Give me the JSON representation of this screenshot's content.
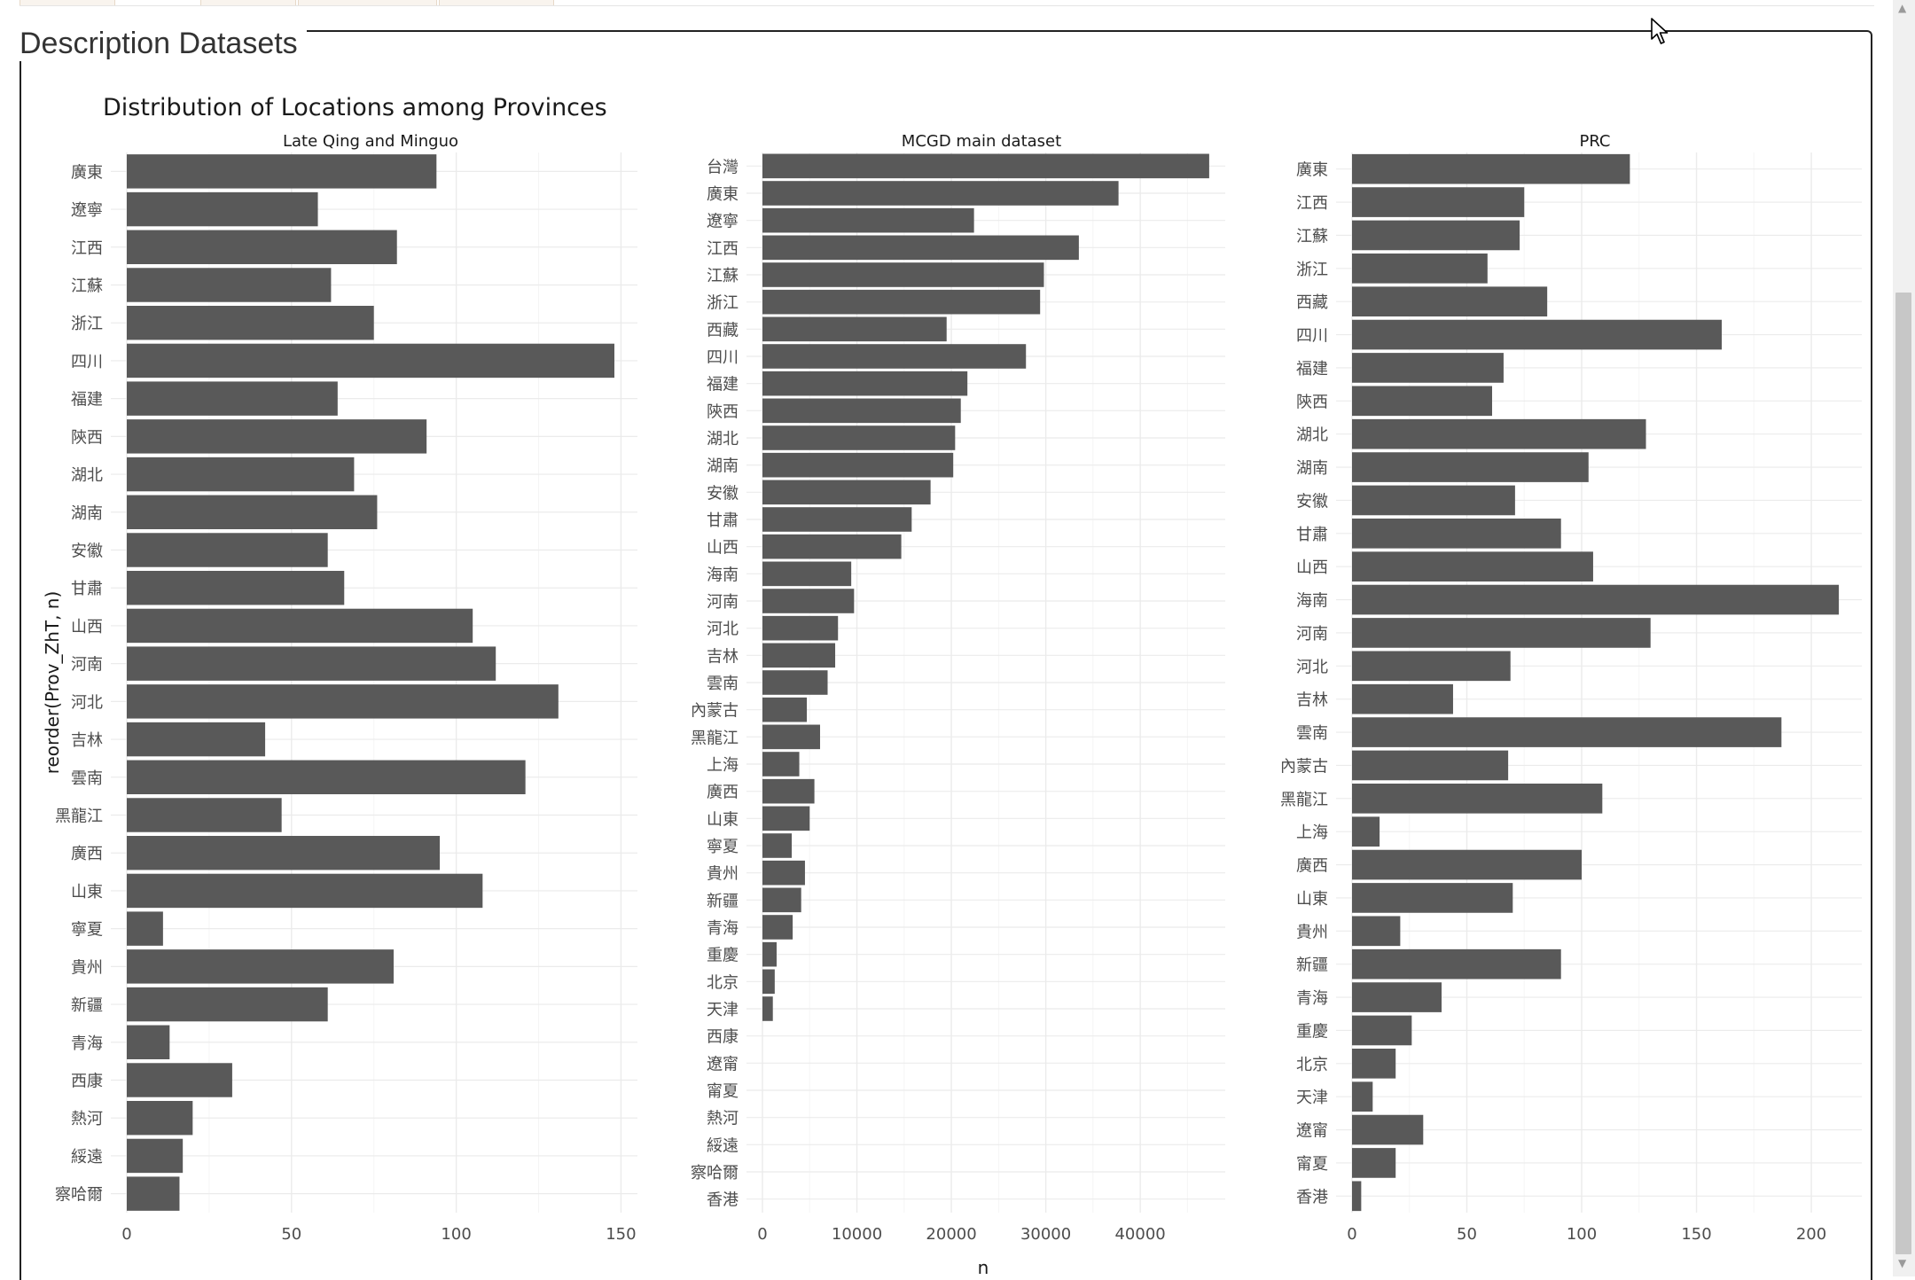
{
  "page": {
    "panel_title": "Description Datasets"
  },
  "colors": {
    "bar": "#595959",
    "grid_major": "#ebebeb",
    "grid_minor": "#f5f5f5",
    "text": "#4d4d4d",
    "title": "#1a1a1a"
  },
  "chart_data": {
    "type": "bar",
    "orientation": "horizontal",
    "title": "Distribution of Locations among Provinces",
    "xlabel": "n",
    "ylabel": "reorder(Prov_ZhT, n)",
    "grid": true,
    "facets": [
      {
        "name": "Late Qing and Minguo",
        "xlim": [
          0,
          155
        ],
        "xticks": [
          0,
          50,
          100,
          150
        ],
        "categories": [
          "廣東",
          "遼寧",
          "江西",
          "江蘇",
          "浙江",
          "四川",
          "福建",
          "陝西",
          "湖北",
          "湖南",
          "安徽",
          "甘肅",
          "山西",
          "河南",
          "河北",
          "吉林",
          "雲南",
          "黑龍江",
          "廣西",
          "山東",
          "寧夏",
          "貴州",
          "新疆",
          "青海",
          "西康",
          "熱河",
          "綏遠",
          "察哈爾"
        ],
        "values": [
          94,
          58,
          82,
          62,
          75,
          148,
          64,
          91,
          69,
          76,
          61,
          66,
          105,
          112,
          131,
          42,
          121,
          47,
          95,
          108,
          11,
          81,
          61,
          13,
          32,
          20,
          17,
          16
        ]
      },
      {
        "name": "MCGD main dataset",
        "xlim": [
          0,
          49000
        ],
        "xticks": [
          0,
          10000,
          20000,
          30000,
          40000
        ],
        "categories": [
          "台灣",
          "廣東",
          "遼寧",
          "江西",
          "江蘇",
          "浙江",
          "西藏",
          "四川",
          "福建",
          "陝西",
          "湖北",
          "湖南",
          "安徽",
          "甘肅",
          "山西",
          "海南",
          "河南",
          "河北",
          "吉林",
          "雲南",
          "內蒙古",
          "黑龍江",
          "上海",
          "廣西",
          "山東",
          "寧夏",
          "貴州",
          "新疆",
          "青海",
          "重慶",
          "北京",
          "天津",
          "西康",
          "遼甯",
          "甯夏",
          "熱河",
          "綏遠",
          "察哈爾",
          "香港"
        ],
        "values": [
          47300,
          37700,
          22400,
          33500,
          29800,
          29400,
          19500,
          27900,
          21700,
          21000,
          20400,
          20200,
          17800,
          15800,
          14700,
          9400,
          9700,
          8000,
          7700,
          6900,
          4700,
          6100,
          3900,
          5500,
          5000,
          3100,
          4500,
          4100,
          3200,
          1500,
          1300,
          1100,
          0,
          0,
          0,
          0,
          0,
          0,
          0
        ]
      },
      {
        "name": "PRC",
        "xlim": [
          0,
          222
        ],
        "xticks": [
          0,
          50,
          100,
          150,
          200
        ],
        "categories": [
          "廣東",
          "江西",
          "江蘇",
          "浙江",
          "西藏",
          "四川",
          "福建",
          "陝西",
          "湖北",
          "湖南",
          "安徽",
          "甘肅",
          "山西",
          "海南",
          "河南",
          "河北",
          "吉林",
          "雲南",
          "內蒙古",
          "黑龍江",
          "上海",
          "廣西",
          "山東",
          "貴州",
          "新疆",
          "青海",
          "重慶",
          "北京",
          "天津",
          "遼甯",
          "甯夏",
          "香港"
        ],
        "values": [
          121,
          75,
          73,
          59,
          85,
          161,
          66,
          61,
          128,
          103,
          71,
          91,
          105,
          212,
          130,
          69,
          44,
          187,
          68,
          109,
          12,
          100,
          70,
          21,
          91,
          39,
          26,
          19,
          9,
          31,
          19,
          4
        ]
      }
    ]
  }
}
